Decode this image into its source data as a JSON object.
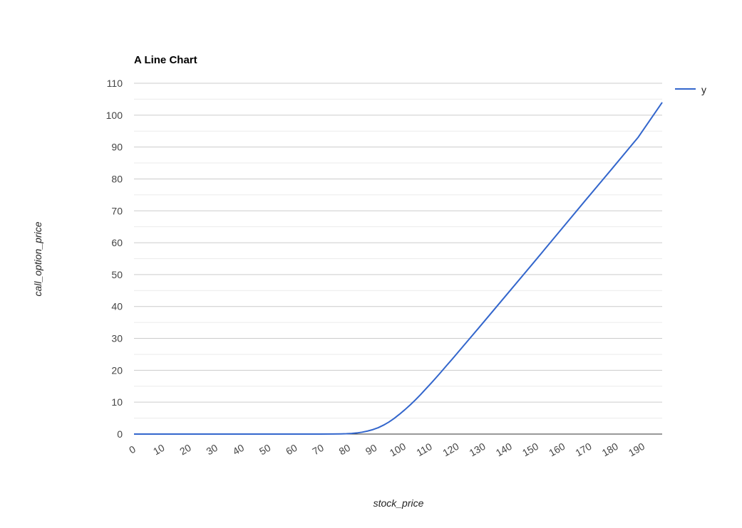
{
  "chart_data": {
    "type": "line",
    "title": "A Line Chart",
    "xlabel": "stock_price",
    "ylabel": "call_option_price",
    "xlim": [
      0,
      199
    ],
    "ylim": [
      0,
      110
    ],
    "x_ticks": [
      0,
      10,
      20,
      30,
      40,
      50,
      60,
      70,
      80,
      90,
      100,
      110,
      120,
      130,
      140,
      150,
      160,
      170,
      180,
      190
    ],
    "y_ticks": [
      0,
      10,
      20,
      30,
      40,
      50,
      60,
      70,
      80,
      90,
      100,
      110
    ],
    "grid": true,
    "legend_position": "right",
    "series": [
      {
        "name": "y",
        "color": "#3366cc",
        "x": [
          0,
          70,
          75,
          78,
          80,
          82,
          84,
          86,
          88,
          90,
          92,
          94,
          96,
          98,
          100,
          102,
          104,
          106,
          108,
          110,
          112,
          115,
          118,
          120,
          125,
          130,
          140,
          150,
          160,
          170,
          180,
          190,
          199
        ],
        "y": [
          0,
          0,
          0.02,
          0.05,
          0.1,
          0.2,
          0.35,
          0.6,
          0.95,
          1.4,
          2.0,
          2.8,
          3.75,
          4.9,
          6.2,
          7.6,
          9.1,
          10.7,
          12.4,
          14.2,
          16.0,
          18.8,
          21.7,
          23.6,
          28.5,
          33.4,
          43.3,
          53.2,
          63.2,
          73.2,
          83.1,
          93.1,
          104.0
        ]
      }
    ]
  }
}
